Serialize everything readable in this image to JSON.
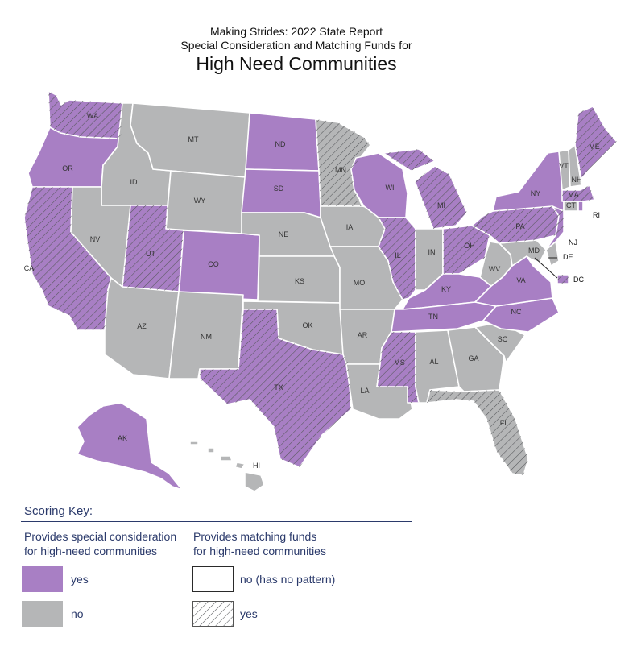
{
  "title": {
    "line1": "Making Strides:  2022 State Report",
    "line2": "Special Consideration and Matching Funds for",
    "line3": "High Need Communities"
  },
  "colors": {
    "yes": "#a87fc4",
    "no": "#b5b6b7",
    "border": "#ffffff",
    "hatch": "#55575a",
    "key_text": "#2b3a6b"
  },
  "states": [
    {
      "abbr": "WA",
      "special_consideration": "yes",
      "matching_funds": "yes"
    },
    {
      "abbr": "OR",
      "special_consideration": "yes",
      "matching_funds": "no"
    },
    {
      "abbr": "CA",
      "special_consideration": "yes",
      "matching_funds": "yes"
    },
    {
      "abbr": "ID",
      "special_consideration": "no",
      "matching_funds": "no"
    },
    {
      "abbr": "NV",
      "special_consideration": "no",
      "matching_funds": "no"
    },
    {
      "abbr": "MT",
      "special_consideration": "no",
      "matching_funds": "no"
    },
    {
      "abbr": "WY",
      "special_consideration": "no",
      "matching_funds": "no"
    },
    {
      "abbr": "UT",
      "special_consideration": "yes",
      "matching_funds": "yes"
    },
    {
      "abbr": "CO",
      "special_consideration": "yes",
      "matching_funds": "no"
    },
    {
      "abbr": "AZ",
      "special_consideration": "no",
      "matching_funds": "no"
    },
    {
      "abbr": "NM",
      "special_consideration": "no",
      "matching_funds": "no"
    },
    {
      "abbr": "ND",
      "special_consideration": "yes",
      "matching_funds": "no"
    },
    {
      "abbr": "SD",
      "special_consideration": "yes",
      "matching_funds": "no"
    },
    {
      "abbr": "NE",
      "special_consideration": "no",
      "matching_funds": "no"
    },
    {
      "abbr": "KS",
      "special_consideration": "no",
      "matching_funds": "no"
    },
    {
      "abbr": "OK",
      "special_consideration": "no",
      "matching_funds": "no"
    },
    {
      "abbr": "TX",
      "special_consideration": "yes",
      "matching_funds": "yes"
    },
    {
      "abbr": "MN",
      "special_consideration": "no",
      "matching_funds": "yes"
    },
    {
      "abbr": "IA",
      "special_consideration": "no",
      "matching_funds": "no"
    },
    {
      "abbr": "MO",
      "special_consideration": "no",
      "matching_funds": "no"
    },
    {
      "abbr": "AR",
      "special_consideration": "no",
      "matching_funds": "no"
    },
    {
      "abbr": "LA",
      "special_consideration": "no",
      "matching_funds": "no"
    },
    {
      "abbr": "WI",
      "special_consideration": "yes",
      "matching_funds": "no"
    },
    {
      "abbr": "MI",
      "special_consideration": "yes",
      "matching_funds": "yes"
    },
    {
      "abbr": "IL",
      "special_consideration": "yes",
      "matching_funds": "yes"
    },
    {
      "abbr": "IN",
      "special_consideration": "no",
      "matching_funds": "no"
    },
    {
      "abbr": "OH",
      "special_consideration": "yes",
      "matching_funds": "yes"
    },
    {
      "abbr": "KY",
      "special_consideration": "yes",
      "matching_funds": "no"
    },
    {
      "abbr": "TN",
      "special_consideration": "yes",
      "matching_funds": "no"
    },
    {
      "abbr": "MS",
      "special_consideration": "yes",
      "matching_funds": "yes"
    },
    {
      "abbr": "AL",
      "special_consideration": "no",
      "matching_funds": "no"
    },
    {
      "abbr": "GA",
      "special_consideration": "no",
      "matching_funds": "no"
    },
    {
      "abbr": "FL",
      "special_consideration": "no",
      "matching_funds": "yes"
    },
    {
      "abbr": "SC",
      "special_consideration": "no",
      "matching_funds": "no"
    },
    {
      "abbr": "NC",
      "special_consideration": "yes",
      "matching_funds": "no"
    },
    {
      "abbr": "VA",
      "special_consideration": "yes",
      "matching_funds": "no"
    },
    {
      "abbr": "WV",
      "special_consideration": "no",
      "matching_funds": "no"
    },
    {
      "abbr": "MD",
      "special_consideration": "no",
      "matching_funds": "no"
    },
    {
      "abbr": "DE",
      "special_consideration": "no",
      "matching_funds": "no"
    },
    {
      "abbr": "DC",
      "special_consideration": "yes",
      "matching_funds": "yes"
    },
    {
      "abbr": "PA",
      "special_consideration": "yes",
      "matching_funds": "yes"
    },
    {
      "abbr": "NJ",
      "special_consideration": "yes",
      "matching_funds": "yes"
    },
    {
      "abbr": "NY",
      "special_consideration": "yes",
      "matching_funds": "no"
    },
    {
      "abbr": "CT",
      "special_consideration": "no",
      "matching_funds": "no"
    },
    {
      "abbr": "RI",
      "special_consideration": "yes",
      "matching_funds": "no"
    },
    {
      "abbr": "MA",
      "special_consideration": "yes",
      "matching_funds": "yes"
    },
    {
      "abbr": "VT",
      "special_consideration": "no",
      "matching_funds": "no"
    },
    {
      "abbr": "NH",
      "special_consideration": "no",
      "matching_funds": "no"
    },
    {
      "abbr": "ME",
      "special_consideration": "yes",
      "matching_funds": "yes"
    },
    {
      "abbr": "AK",
      "special_consideration": "yes",
      "matching_funds": "no"
    },
    {
      "abbr": "HI",
      "special_consideration": "no",
      "matching_funds": "no"
    }
  ],
  "key": {
    "title": "Scoring Key:",
    "special_heading_1": "Provides special consideration",
    "special_heading_2": "for high-need communities",
    "matching_heading_1": "Provides matching funds",
    "matching_heading_2": "for high-need communities",
    "special_yes": "yes",
    "special_no": "no",
    "matching_no": "no (has no pattern)",
    "matching_yes": "yes"
  }
}
